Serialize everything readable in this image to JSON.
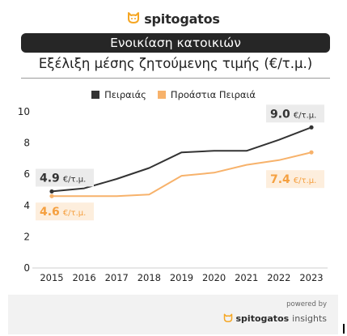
{
  "brand": {
    "name": "spitogatos",
    "logo_icon": "cat-head-icon",
    "accent": "#f5a623"
  },
  "chart_data": {
    "type": "line",
    "title": "Ενοικίαση κατοικιών",
    "subtitle": "Εξέλιξη μέσης ζητούμενης τιμής (€/τ.μ.)",
    "xlabel": "",
    "ylabel": "",
    "x": [
      "2015",
      "2016",
      "2017",
      "2018",
      "2019",
      "2020",
      "2021",
      "2022",
      "2023"
    ],
    "ylim": [
      0,
      10
    ],
    "yticks": [
      "0",
      "2",
      "4",
      "6",
      "8",
      "10"
    ],
    "grid": false,
    "legend_position": "top",
    "series": [
      {
        "name": "Πειραιάς",
        "color": "#333333",
        "values": [
          4.9,
          5.1,
          5.7,
          6.4,
          7.4,
          7.5,
          7.5,
          8.2,
          9.0
        ],
        "labels": [
          {
            "index": 0,
            "value": "4.9",
            "unit": "€/τ.μ.",
            "side": "above"
          },
          {
            "index": 8,
            "value": "9.0",
            "unit": "€/τ.μ.",
            "side": "above"
          }
        ],
        "label_bg": "#ebebeb",
        "label_color": "#333333"
      },
      {
        "name": "Προάστια Πειραιά",
        "color": "#f7b26b",
        "values": [
          4.6,
          4.6,
          4.6,
          4.7,
          5.9,
          6.1,
          6.6,
          6.9,
          7.4
        ],
        "labels": [
          {
            "index": 0,
            "value": "4.6",
            "unit": "€/τ.μ.",
            "side": "below"
          },
          {
            "index": 8,
            "value": "7.4",
            "unit": "€/τ.μ.",
            "side": "below"
          }
        ],
        "label_bg": "#fdeedd",
        "label_color": "#f5a040"
      }
    ]
  },
  "footer": {
    "powered_by": "powered by",
    "brand_bold": "spitogatos",
    "brand_light": "insights"
  }
}
